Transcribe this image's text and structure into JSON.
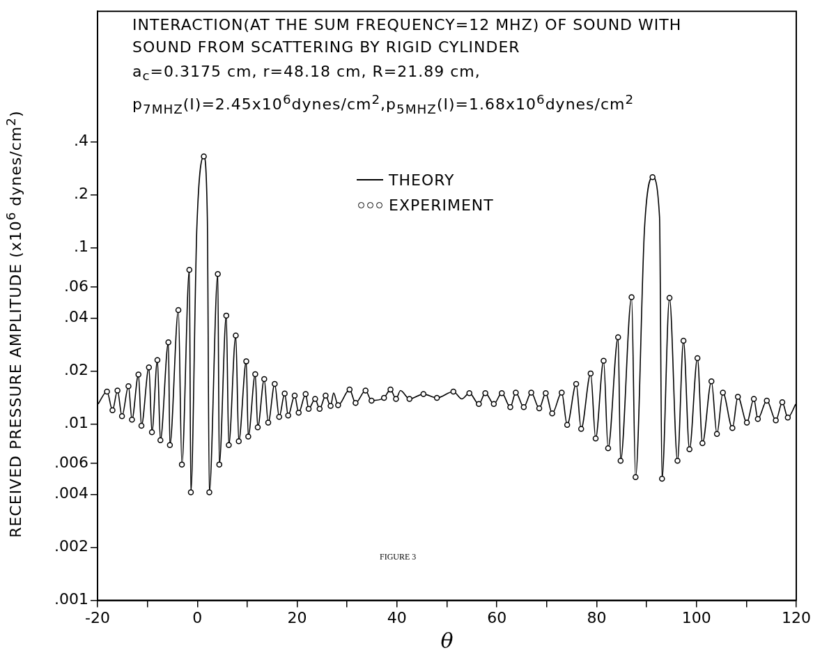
{
  "chart_data": {
    "type": "line",
    "title": "INTERACTION(AT THE SUM FREQUENCY=12 MHZ) OF SOUND WITH SOUND FROM SCATTERING BY RIGID CYLINDER",
    "subtitle": "a$_{c}$=0.3175 cm, r=48.18 cm, R=21.89 cm,\np$_{7MHZ}$(I)=2.45x10$^{6}$dynes/cm$^{2}$,p$_{5MHZ}$(I)=1.68x10$^{6}$dynes/cm$^{2}$",
    "xlabel": "θ",
    "ylabel": "RECEIVED PRESSURE AMPLITUDE (x10$^{6}$ dynes/cm$^{2}$)",
    "annotations": [
      "FIGURE 3"
    ],
    "log": "y",
    "grid": false,
    "legend": "top",
    "xlim": [
      -20,
      120
    ],
    "xticks": [
      -20,
      {
        "value": -10,
        "label": null
      },
      0,
      {
        "value": 10,
        "label": null
      },
      20,
      {
        "value": 30,
        "label": null
      },
      40,
      {
        "value": 50,
        "label": null
      },
      60,
      {
        "value": 70,
        "label": null
      },
      80,
      {
        "value": 90,
        "label": null
      },
      100,
      {
        "value": 110,
        "label": null
      },
      120
    ],
    "ylim": [
      0.001,
      2.2
    ],
    "yticks": [
      {
        "value": 0.001,
        "label": ".001"
      },
      {
        "value": 0.002,
        "label": ".002"
      },
      {
        "value": 0.004,
        "label": ".004"
      },
      {
        "value": 0.006,
        "label": ".006"
      },
      {
        "value": 0.01,
        "label": ".01"
      },
      {
        "value": 0.02,
        "label": ".02"
      },
      {
        "value": 0.04,
        "label": ".04"
      },
      {
        "value": 0.06,
        "label": ".06"
      },
      {
        "value": 0.1,
        "label": ".1"
      },
      {
        "value": 0.2,
        "label": ".2"
      },
      {
        "value": 0.4,
        "label": ".4"
      }
    ],
    "series": [
      {
        "name": "THEORY",
        "color": "#000000",
        "marker": "none",
        "x": [
          -19.9,
          -18.1,
          -17.0,
          -16.0,
          -15.1,
          -13.8,
          -13.1,
          -11.8,
          -11.2,
          -9.7,
          -9.1,
          -8.0,
          -7.4,
          -5.8,
          -5.5,
          -3.8,
          -3.1,
          -1.6,
          -1.3,
          -0.1,
          1.3,
          2.0,
          2.4,
          4.1,
          4.4,
          5.8,
          6.3,
          7.7,
          8.3,
          9.8,
          10.2,
          11.6,
          12.1,
          13.4,
          14.2,
          15.5,
          16.4,
          17.5,
          18.2,
          19.5,
          20.3,
          21.7,
          22.3,
          23.6,
          24.5,
          25.7,
          26.7,
          27.3,
          28.2,
          30.5,
          31.7,
          33.7,
          34.9,
          37.4,
          38.7,
          39.8,
          40.7,
          42.5,
          45.3,
          48.0,
          51.3,
          53.0,
          54.5,
          56.4,
          57.7,
          59.4,
          61.0,
          62.7,
          63.8,
          65.4,
          66.9,
          68.5,
          69.8,
          71.1,
          73.0,
          74.1,
          75.9,
          76.9,
          78.8,
          79.8,
          81.4,
          82.3,
          84.3,
          84.8,
          87.0,
          87.8,
          89.6,
          91.2,
          92.6,
          93.1,
          94.6,
          96.2,
          97.4,
          98.6,
          100.2,
          101.2,
          103.0,
          104.1,
          105.3,
          107.2,
          108.3,
          110.1,
          111.5,
          112.3,
          114.1,
          115.9,
          117.2,
          118.3,
          119.9
        ],
        "values": [
          0.013,
          0.0153,
          0.012,
          0.0155,
          0.0111,
          0.0164,
          0.0106,
          0.0191,
          0.0098,
          0.021,
          0.009,
          0.0231,
          0.0081,
          0.0291,
          0.0076,
          0.0444,
          0.0059,
          0.075,
          0.0041,
          0.13,
          0.33,
          0.15,
          0.0041,
          0.071,
          0.0059,
          0.0413,
          0.0076,
          0.0318,
          0.008,
          0.0227,
          0.0085,
          0.0192,
          0.0096,
          0.018,
          0.0102,
          0.0169,
          0.011,
          0.0149,
          0.0112,
          0.0145,
          0.0116,
          0.0148,
          0.0122,
          0.0139,
          0.0122,
          0.0145,
          0.0127,
          0.015,
          0.0128,
          0.0157,
          0.0132,
          0.0155,
          0.0136,
          0.0141,
          0.0157,
          0.0139,
          0.0155,
          0.0139,
          0.0148,
          0.0141,
          0.0153,
          0.0139,
          0.015,
          0.013,
          0.015,
          0.013,
          0.015,
          0.0125,
          0.0151,
          0.0125,
          0.0151,
          0.0123,
          0.015,
          0.0115,
          0.0151,
          0.0099,
          0.0169,
          0.0094,
          0.0194,
          0.0083,
          0.0229,
          0.0073,
          0.0311,
          0.0062,
          0.0525,
          0.005,
          0.13,
          0.252,
          0.15,
          0.0049,
          0.052,
          0.0062,
          0.0297,
          0.0072,
          0.0237,
          0.0078,
          0.0175,
          0.0088,
          0.0151,
          0.0095,
          0.0143,
          0.0102,
          0.0139,
          0.0107,
          0.0136,
          0.0105,
          0.0133,
          0.0109,
          0.013
        ]
      },
      {
        "name": "EXPERIMENT",
        "type": "scatter",
        "color": "#000000",
        "marker": "circle",
        "x": [
          -18.1,
          -17.0,
          -16.0,
          -15.1,
          -13.8,
          -13.1,
          -11.8,
          -11.2,
          -9.7,
          -9.1,
          -8.0,
          -7.4,
          -5.8,
          -5.5,
          -3.8,
          -3.1,
          -1.6,
          -1.3,
          1.3,
          2.4,
          4.1,
          4.4,
          5.8,
          6.3,
          7.7,
          8.3,
          9.8,
          10.2,
          11.6,
          12.1,
          13.4,
          14.2,
          15.5,
          16.4,
          17.5,
          18.2,
          19.5,
          20.3,
          21.7,
          22.3,
          23.6,
          24.5,
          25.7,
          26.7,
          28.2,
          30.5,
          31.7,
          33.7,
          34.9,
          37.4,
          38.7,
          39.8,
          42.5,
          45.3,
          48.0,
          51.3,
          54.5,
          56.4,
          57.7,
          59.4,
          61.0,
          62.7,
          63.8,
          65.4,
          66.9,
          68.5,
          69.8,
          71.1,
          73.0,
          74.1,
          75.9,
          76.9,
          78.8,
          79.8,
          81.4,
          82.3,
          84.3,
          84.8,
          87.0,
          87.8,
          91.2,
          93.1,
          94.6,
          96.2,
          97.4,
          98.6,
          100.2,
          101.2,
          103.0,
          104.1,
          105.3,
          107.2,
          108.3,
          110.1,
          111.5,
          112.3,
          114.1,
          115.9,
          117.2,
          118.3
        ],
        "values": [
          0.0153,
          0.012,
          0.0155,
          0.0111,
          0.0164,
          0.0106,
          0.0191,
          0.0098,
          0.021,
          0.009,
          0.0231,
          0.0081,
          0.0291,
          0.0076,
          0.0444,
          0.0059,
          0.075,
          0.0041,
          0.33,
          0.0041,
          0.071,
          0.0059,
          0.0413,
          0.0076,
          0.0318,
          0.008,
          0.0227,
          0.0085,
          0.0192,
          0.0096,
          0.018,
          0.0102,
          0.0169,
          0.011,
          0.0149,
          0.0112,
          0.0145,
          0.0116,
          0.0148,
          0.0122,
          0.0139,
          0.0122,
          0.0145,
          0.0127,
          0.0128,
          0.0157,
          0.0132,
          0.0155,
          0.0136,
          0.0141,
          0.0157,
          0.0139,
          0.0139,
          0.0148,
          0.0141,
          0.0153,
          0.015,
          0.013,
          0.015,
          0.013,
          0.015,
          0.0125,
          0.0151,
          0.0125,
          0.0151,
          0.0123,
          0.015,
          0.0115,
          0.0151,
          0.0099,
          0.0169,
          0.0094,
          0.0194,
          0.0083,
          0.0229,
          0.0073,
          0.0311,
          0.0062,
          0.0525,
          0.005,
          0.252,
          0.0049,
          0.052,
          0.0062,
          0.0297,
          0.0072,
          0.0237,
          0.0078,
          0.0175,
          0.0088,
          0.0151,
          0.0095,
          0.0143,
          0.0102,
          0.0139,
          0.0107,
          0.0136,
          0.0105,
          0.0133,
          0.0109
        ]
      }
    ]
  }
}
